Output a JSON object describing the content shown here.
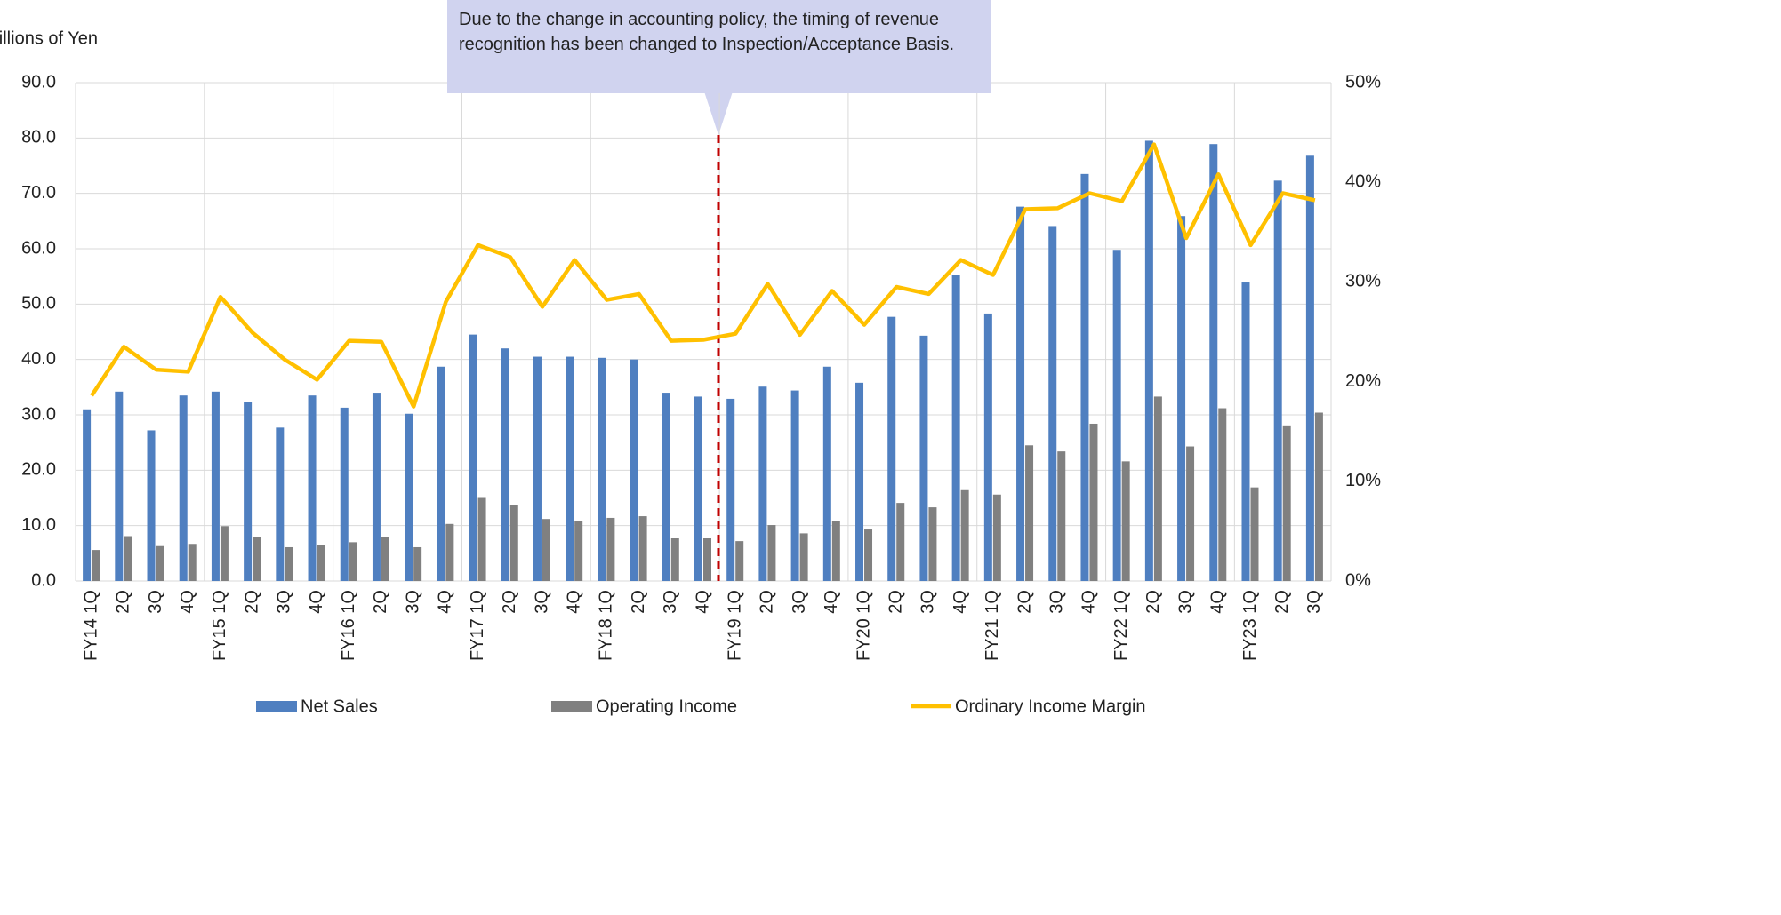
{
  "chart_data": {
    "type": "bar_line",
    "y_label": "Billions of Yen",
    "annotation": "Due to the change in accounting policy, the timing of revenue recognition has been changed to Inspection/Acceptance Basis.",
    "categories": [
      "FY14 1Q",
      "2Q",
      "3Q",
      "4Q",
      "FY15 1Q",
      "2Q",
      "3Q",
      "4Q",
      "FY16 1Q",
      "2Q",
      "3Q",
      "4Q",
      "FY17 1Q",
      "2Q",
      "3Q",
      "4Q",
      "FY18 1Q",
      "2Q",
      "3Q",
      "4Q",
      "FY19 1Q",
      "2Q",
      "3Q",
      "4Q",
      "FY20 1Q",
      "2Q",
      "3Q",
      "4Q",
      "FY21 1Q",
      "2Q",
      "3Q",
      "4Q",
      "FY22 1Q",
      "2Q",
      "3Q",
      "4Q",
      "FY23 1Q",
      "2Q",
      "3Q"
    ],
    "series": [
      {
        "name": "Net Sales",
        "type": "bar",
        "color": "#4f7fc0",
        "values": [
          31.0,
          34.2,
          27.2,
          33.5,
          34.2,
          32.4,
          27.7,
          33.5,
          31.3,
          34.0,
          30.2,
          38.7,
          44.5,
          42.0,
          40.5,
          40.5,
          40.3,
          40.0,
          34.0,
          33.3,
          32.9,
          35.1,
          34.4,
          38.7,
          35.8,
          47.7,
          44.3,
          55.3,
          48.3,
          67.6,
          64.1,
          73.5,
          59.8,
          79.5,
          65.9,
          78.9,
          53.9,
          72.3,
          76.8
        ]
      },
      {
        "name": "Operating Income",
        "type": "bar",
        "color": "#808080",
        "values": [
          5.6,
          8.1,
          6.3,
          6.7,
          9.9,
          7.9,
          6.1,
          6.5,
          7.0,
          7.9,
          6.1,
          10.3,
          15.0,
          13.7,
          11.2,
          10.8,
          11.4,
          11.7,
          7.7,
          7.7,
          7.2,
          10.1,
          8.6,
          10.8,
          9.3,
          14.1,
          13.3,
          16.4,
          15.6,
          24.5,
          23.4,
          28.4,
          21.6,
          33.3,
          24.3,
          31.2,
          16.9,
          28.1,
          30.4
        ]
      },
      {
        "name": "Ordinary Income Margin",
        "type": "line",
        "axis": "y2",
        "color": "#ffc000",
        "values": [
          18.6,
          23.5,
          21.2,
          21.0,
          28.5,
          24.9,
          22.2,
          20.2,
          24.1,
          24.0,
          17.5,
          28.0,
          33.7,
          32.5,
          27.5,
          32.2,
          28.2,
          28.8,
          24.1,
          24.2,
          24.8,
          29.8,
          24.7,
          29.1,
          25.7,
          29.5,
          28.8,
          32.2,
          30.7,
          37.3,
          37.4,
          38.9,
          38.1,
          43.8,
          34.4,
          40.8,
          33.7,
          38.9,
          38.2
        ]
      }
    ],
    "ylim": [
      0,
      90
    ],
    "yticks": [
      {
        "value": 0,
        "label": "0.0"
      },
      {
        "value": 10,
        "label": "10.0"
      },
      {
        "value": 20,
        "label": "20.0"
      },
      {
        "value": 30,
        "label": "30.0"
      },
      {
        "value": 40,
        "label": "40.0"
      },
      {
        "value": 50,
        "label": "50.0"
      },
      {
        "value": 60,
        "label": "60.0"
      },
      {
        "value": 70,
        "label": "70.0"
      },
      {
        "value": 80,
        "label": "80.0"
      },
      {
        "value": 90,
        "label": "90.0"
      }
    ],
    "y2lim": [
      0,
      50
    ],
    "y2ticks": [
      {
        "value": 0,
        "label": "0%"
      },
      {
        "value": 10,
        "label": "10%"
      },
      {
        "value": 20,
        "label": "20%"
      },
      {
        "value": 30,
        "label": "30%"
      },
      {
        "value": 40,
        "label": "40%"
      },
      {
        "value": 50,
        "label": "50%"
      }
    ],
    "grid": true,
    "legend": "bottom"
  }
}
